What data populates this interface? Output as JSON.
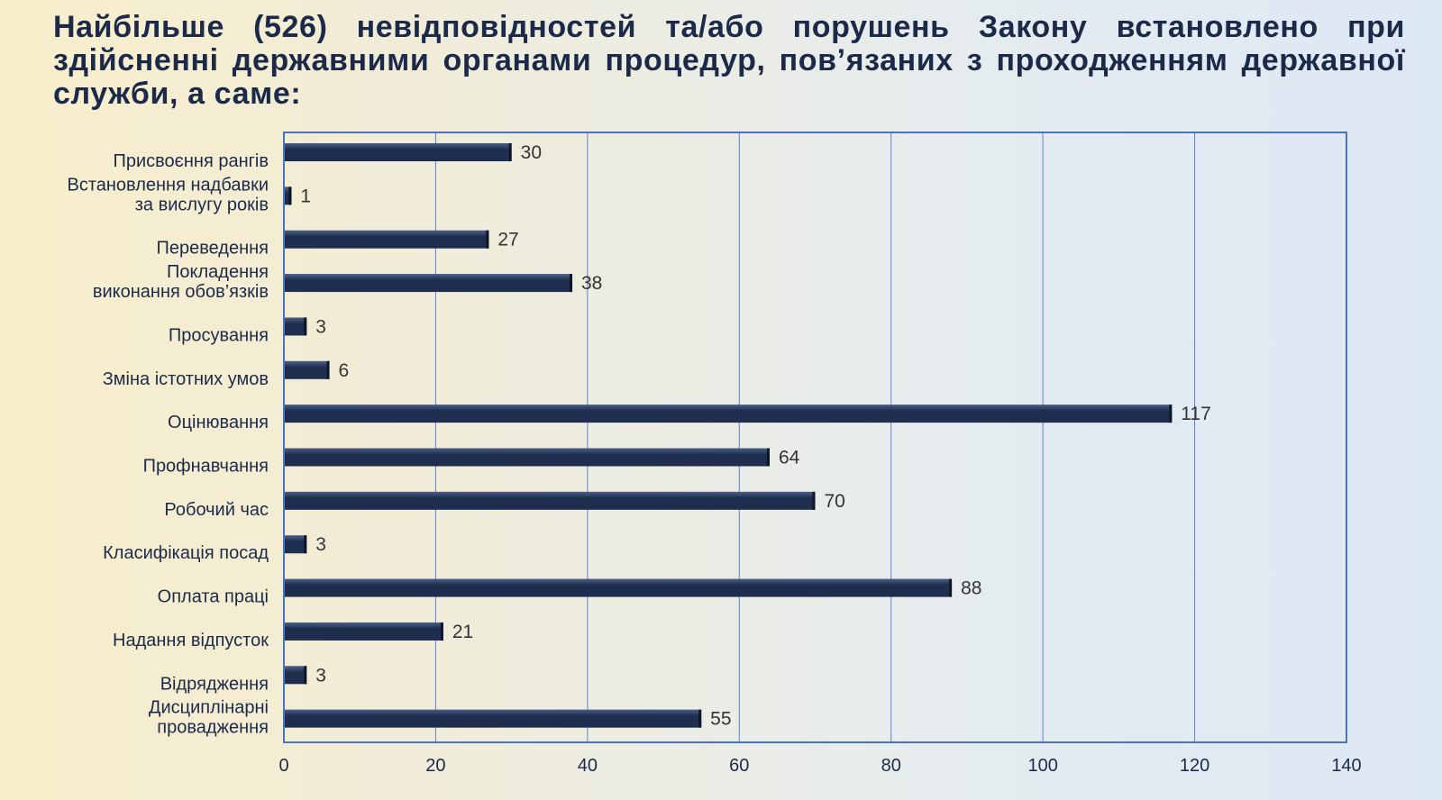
{
  "slide": {
    "title": "Найбільше (526) невідповідностей та/або порушень Закону встановлено при здійсненні державними органами процедур, пов’язаних з проходженням державної служби, а саме:"
  },
  "colors": {
    "bar": "#1f2d4f",
    "bar_highlight": "#4a5f86",
    "plot_border": "#4a72c4",
    "gridline": "#5b82cf",
    "text": "#1c2a4a"
  },
  "chart_data": {
    "type": "bar",
    "orientation": "horizontal",
    "categories": [
      [
        "Присвоєння рангів"
      ],
      [
        "Встановлення надбавки",
        "за вислугу років"
      ],
      [
        "Переведення"
      ],
      [
        "Покладення",
        "виконання обов’язків"
      ],
      [
        "Просування"
      ],
      [
        "Зміна істотних умов"
      ],
      [
        "Оцінювання"
      ],
      [
        "Профнавчання"
      ],
      [
        "Робочий час"
      ],
      [
        "Класифікація посад"
      ],
      [
        "Оплата праці"
      ],
      [
        "Надання відпусток"
      ],
      [
        "Відрядження"
      ],
      [
        "Дисциплінарні",
        "провадження"
      ]
    ],
    "values": [
      30,
      1,
      27,
      38,
      3,
      6,
      117,
      64,
      70,
      3,
      88,
      21,
      3,
      55
    ],
    "xlim": [
      0,
      140
    ],
    "xticks": [
      "0",
      "20",
      "40",
      "60",
      "80",
      "100",
      "120",
      "140"
    ],
    "grid": true,
    "legend": "none"
  }
}
